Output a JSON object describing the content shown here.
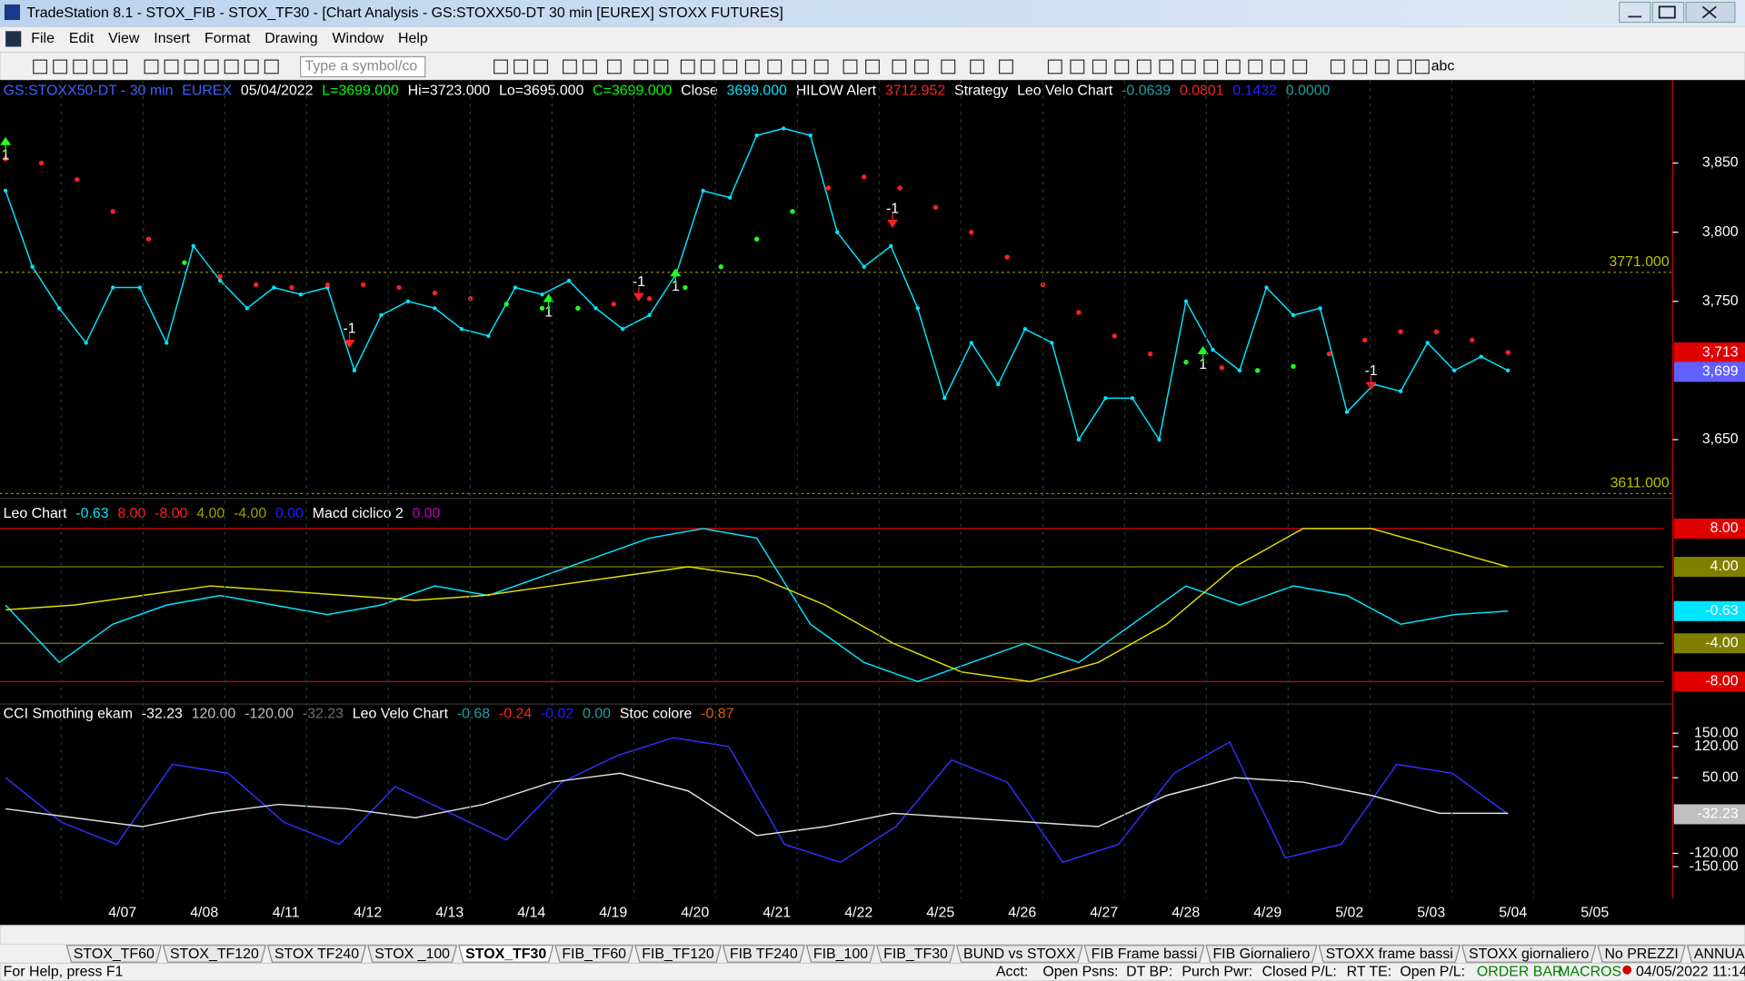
{
  "window": {
    "title": "TradeStation 8.1 - STOX_FIB - STOX_TF30 - [Chart Analysis - GS:STOXX50-DT  30 min  [EUREX] STOXX FUTURES]"
  },
  "menu": [
    "File",
    "Edit",
    "View",
    "Insert",
    "Format",
    "Drawing",
    "Window",
    "Help"
  ],
  "toolbar": {
    "symbol_box": "Type a symbol/co",
    "text_tool": "abc"
  },
  "chart_data": [
    {
      "type": "line",
      "ylim": [
        3610,
        3910
      ],
      "header": [
        {
          "text": "GS:STOXX50-DT - 30 min",
          "color": "#4060ff"
        },
        {
          "text": "EUREX",
          "color": "#4060ff"
        },
        {
          "text": "05/04/2022",
          "color": "#ffffff"
        },
        {
          "text": "L=3699.000",
          "color": "#00ff00"
        },
        {
          "text": "Hi=3723.000",
          "color": "#ffffff"
        },
        {
          "text": "Lo=3695.000",
          "color": "#ffffff"
        },
        {
          "text": "C=3699.000",
          "color": "#00ff00"
        },
        {
          "text": "Close",
          "color": "#ffffff"
        },
        {
          "text": "3699.000",
          "color": "#00e5ff"
        },
        {
          "text": "HILOW Alert",
          "color": "#ffffff"
        },
        {
          "text": "3712.952",
          "color": "#ff2020"
        },
        {
          "text": "Strategy",
          "color": "#ffffff"
        },
        {
          "text": "Leo Velo Chart",
          "color": "#ffffff"
        },
        {
          "text": "-0.0639",
          "color": "#20a0a0"
        },
        {
          "text": "0.0801",
          "color": "#ff2020"
        },
        {
          "text": "0.1432",
          "color": "#2020ff"
        },
        {
          "text": "0.0000",
          "color": "#20a0a0"
        }
      ],
      "yticks": [
        {
          "value": 3850,
          "label": "3,850"
        },
        {
          "value": 3800,
          "label": "3,800"
        },
        {
          "value": 3750,
          "label": "3,750"
        },
        {
          "value": 3650,
          "label": "3,650"
        }
      ],
      "reference_lines": [
        {
          "value": 3771,
          "label": "3771.000"
        },
        {
          "value": 3611,
          "label": "3611.000"
        }
      ],
      "last_values": [
        {
          "value": 3713,
          "label": "3,713",
          "color": "#e00000"
        },
        {
          "value": 3699,
          "label": "3,699",
          "color": "#6060ff"
        }
      ],
      "signals": [
        "1",
        "-1",
        "1",
        "-1",
        "1",
        "-1",
        "1",
        "-1"
      ],
      "series": [
        {
          "color": "#00e5ff",
          "values": [
            3830,
            3775,
            3745,
            3720,
            3760,
            3760,
            3720,
            3790,
            3765,
            3745,
            3760,
            3755,
            3760,
            3700,
            3740,
            3750,
            3745,
            3730,
            3725,
            3760,
            3755,
            3765,
            3745,
            3730,
            3740,
            3770,
            3830,
            3825,
            3870,
            3875,
            3870,
            3800,
            3775,
            3790,
            3745,
            3680,
            3720,
            3690,
            3730,
            3720,
            3650,
            3680,
            3680,
            3650,
            3750,
            3715,
            3700,
            3760,
            3740,
            3745,
            3670,
            3690,
            3685,
            3720,
            3700,
            3710,
            3700
          ]
        },
        {
          "color": "#ff2020",
          "values": [
            3853,
            3850,
            3838,
            3815,
            3795,
            3778,
            3768,
            3762,
            3760,
            3762,
            3762,
            3760,
            3756,
            3752,
            3748,
            3745,
            3745,
            3748,
            3752,
            3760,
            3775,
            3795,
            3815,
            3832,
            3840,
            3832,
            3818,
            3800,
            3782,
            3762,
            3742,
            3725,
            3712,
            3706,
            3702,
            3700,
            3703,
            3712,
            3722,
            3728,
            3728,
            3722,
            3713
          ]
        }
      ]
    },
    {
      "type": "line",
      "ylim": [
        -10,
        10.7
      ],
      "header": [
        {
          "text": "Leo Chart",
          "color": "#ffffff"
        },
        {
          "text": "-0.63",
          "color": "#00e5ff"
        },
        {
          "text": "8.00",
          "color": "#ff2020"
        },
        {
          "text": "-8.00",
          "color": "#ff2020"
        },
        {
          "text": "4.00",
          "color": "#a0a000"
        },
        {
          "text": "-4.00",
          "color": "#a0a000"
        },
        {
          "text": "0.00",
          "color": "#2020ff"
        },
        {
          "text": "Macd ciclico 2",
          "color": "#ffffff"
        },
        {
          "text": "0.00",
          "color": "#c000c0"
        }
      ],
      "yticks": [
        {
          "value": 8,
          "label": "8.00"
        },
        {
          "value": 4,
          "label": "4.00"
        },
        {
          "value": -4,
          "label": "-4.00"
        },
        {
          "value": -8,
          "label": "-8.00"
        }
      ],
      "level_colors": [
        "#e00000",
        "#808000",
        "#808000",
        "#e00000"
      ],
      "last_values": [
        {
          "value": -0.63,
          "label": "-0.63",
          "color": "#00e5ff"
        }
      ],
      "series": [
        {
          "color": "#00e5ff",
          "values": [
            0,
            -6,
            -2,
            0,
            1,
            0,
            -1,
            0,
            2,
            1,
            3,
            5,
            7,
            8,
            7,
            -2,
            -6,
            -8,
            -6,
            -4,
            -6,
            -2,
            2,
            0,
            2,
            1,
            -2,
            -1,
            -0.63
          ]
        },
        {
          "color": "#e0e000",
          "values": [
            -0.5,
            0,
            1,
            2,
            1.5,
            1,
            0.5,
            1,
            2,
            3,
            4,
            3,
            0,
            -4,
            -7,
            -8,
            -6,
            -2,
            4,
            8,
            8,
            6,
            4
          ]
        }
      ]
    },
    {
      "type": "line",
      "ylim": [
        -222,
        218
      ],
      "header": [
        {
          "text": "CCI Smothing ekam",
          "color": "#ffffff"
        },
        {
          "text": "-32.23",
          "color": "#ffffff"
        },
        {
          "text": "120.00",
          "color": "#c0c0c0"
        },
        {
          "text": "-120.00",
          "color": "#c0c0c0"
        },
        {
          "text": "-32.23",
          "color": "#707070"
        },
        {
          "text": "Leo Velo Chart",
          "color": "#ffffff"
        },
        {
          "text": "-0.68",
          "color": "#20a0a0"
        },
        {
          "text": "-0.24",
          "color": "#ff2020"
        },
        {
          "text": "-0.02",
          "color": "#2020ff"
        },
        {
          "text": "0.00",
          "color": "#20a0a0"
        },
        {
          "text": "Stoc colore",
          "color": "#ffffff"
        },
        {
          "text": "-0.87",
          "color": "#e06000"
        }
      ],
      "yticks": [
        {
          "value": 150,
          "label": "150.00"
        },
        {
          "value": 120,
          "label": "120.00"
        },
        {
          "value": 50,
          "label": "50.00"
        },
        {
          "value": -120,
          "label": "-120.00"
        },
        {
          "value": -150,
          "label": "-150.00"
        }
      ],
      "last_values": [
        {
          "value": -32.23,
          "label": "-32.23",
          "color": "#c0c0c0"
        }
      ],
      "series": [
        {
          "color": "#3030ff",
          "values": [
            50,
            -50,
            -100,
            80,
            60,
            -50,
            -100,
            30,
            -30,
            -90,
            40,
            100,
            140,
            120,
            -100,
            -140,
            -60,
            90,
            40,
            -140,
            -100,
            60,
            130,
            -130,
            -100,
            80,
            60,
            -32
          ]
        },
        {
          "color": "#e0e0e0",
          "values": [
            -20,
            -40,
            -60,
            -30,
            -10,
            -20,
            -40,
            -10,
            40,
            60,
            20,
            -80,
            -60,
            -30,
            -40,
            -50,
            -60,
            10,
            50,
            40,
            10,
            -30,
            -30
          ]
        }
      ]
    }
  ],
  "date_axis": [
    "4/07",
    "4/08",
    "4/11",
    "4/12",
    "4/13",
    "4/14",
    "4/19",
    "4/20",
    "4/21",
    "4/22",
    "4/25",
    "4/26",
    "4/27",
    "4/28",
    "4/29",
    "5/02",
    "5/03",
    "5/04",
    "5/05"
  ],
  "tabs": [
    "STOX_TF60",
    "STOX_TF120",
    "STOX TF240",
    "STOX _100",
    "STOX_TF30",
    "FIB_TF60",
    "FIB_TF120",
    "FIB TF240",
    "FIB_100",
    "FIB_TF30",
    "BUND vs STOXX",
    "FIB Frame bassi",
    "FIB Giornaliero",
    "STOXX frame bassi",
    "STOXX giornaliero",
    "No PREZZI",
    "ANNUALE Indici"
  ],
  "active_tab": 4,
  "status_bar": [
    "For Help, press F1",
    "Acct:",
    "Open Psns:",
    "DT BP:",
    "Purch Pwr:",
    "Closed P/L:",
    "RT TE:",
    "Open P/L:",
    "ORDER BAR",
    "MACROS",
    "04/05/2022 11:14"
  ]
}
